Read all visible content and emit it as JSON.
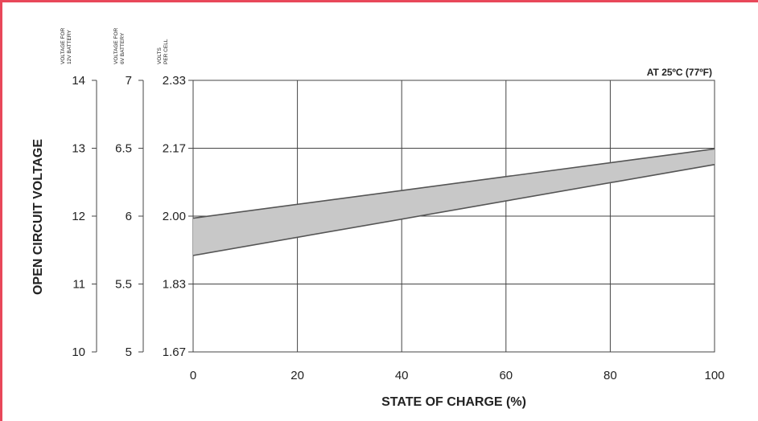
{
  "chart_data": {
    "type": "area",
    "title": "",
    "annotation": "AT 25ºC (77ºF)",
    "xlabel": "STATE OF CHARGE (%)",
    "ylabel": "OPEN CIRCUIT VOLTAGE",
    "x_ticks": [
      "0",
      "20",
      "40",
      "60",
      "80",
      "100"
    ],
    "xlim": [
      0,
      100
    ],
    "y_axes": [
      {
        "header": [
          "VOLTAGE FOR",
          "12V BATTERY"
        ],
        "ticks": [
          "14",
          "13",
          "12",
          "11",
          "10"
        ],
        "ylim": [
          10,
          14
        ]
      },
      {
        "header": [
          "VOLTAGE FOR",
          "6V BATTERY"
        ],
        "ticks": [
          "7",
          "6.5",
          "6",
          "5.5",
          "5"
        ],
        "ylim": [
          5,
          7
        ]
      },
      {
        "header": [
          "VOLTS",
          "PER CELL"
        ],
        "ticks": [
          "2.33",
          "2.17",
          "2.00",
          "1.83",
          "1.67"
        ],
        "ylim": [
          1.67,
          2.33
        ]
      }
    ],
    "band": {
      "upper": {
        "x": [
          0,
          100
        ],
        "y": [
          11.97,
          12.99
        ]
      },
      "lower": {
        "x": [
          0,
          100
        ],
        "y": [
          11.42,
          12.76
        ]
      },
      "fill": "#c8c8c8",
      "stroke": "#555555"
    },
    "grid": true,
    "colors": {
      "frame": "#e8485a",
      "grid": "#444444"
    }
  }
}
